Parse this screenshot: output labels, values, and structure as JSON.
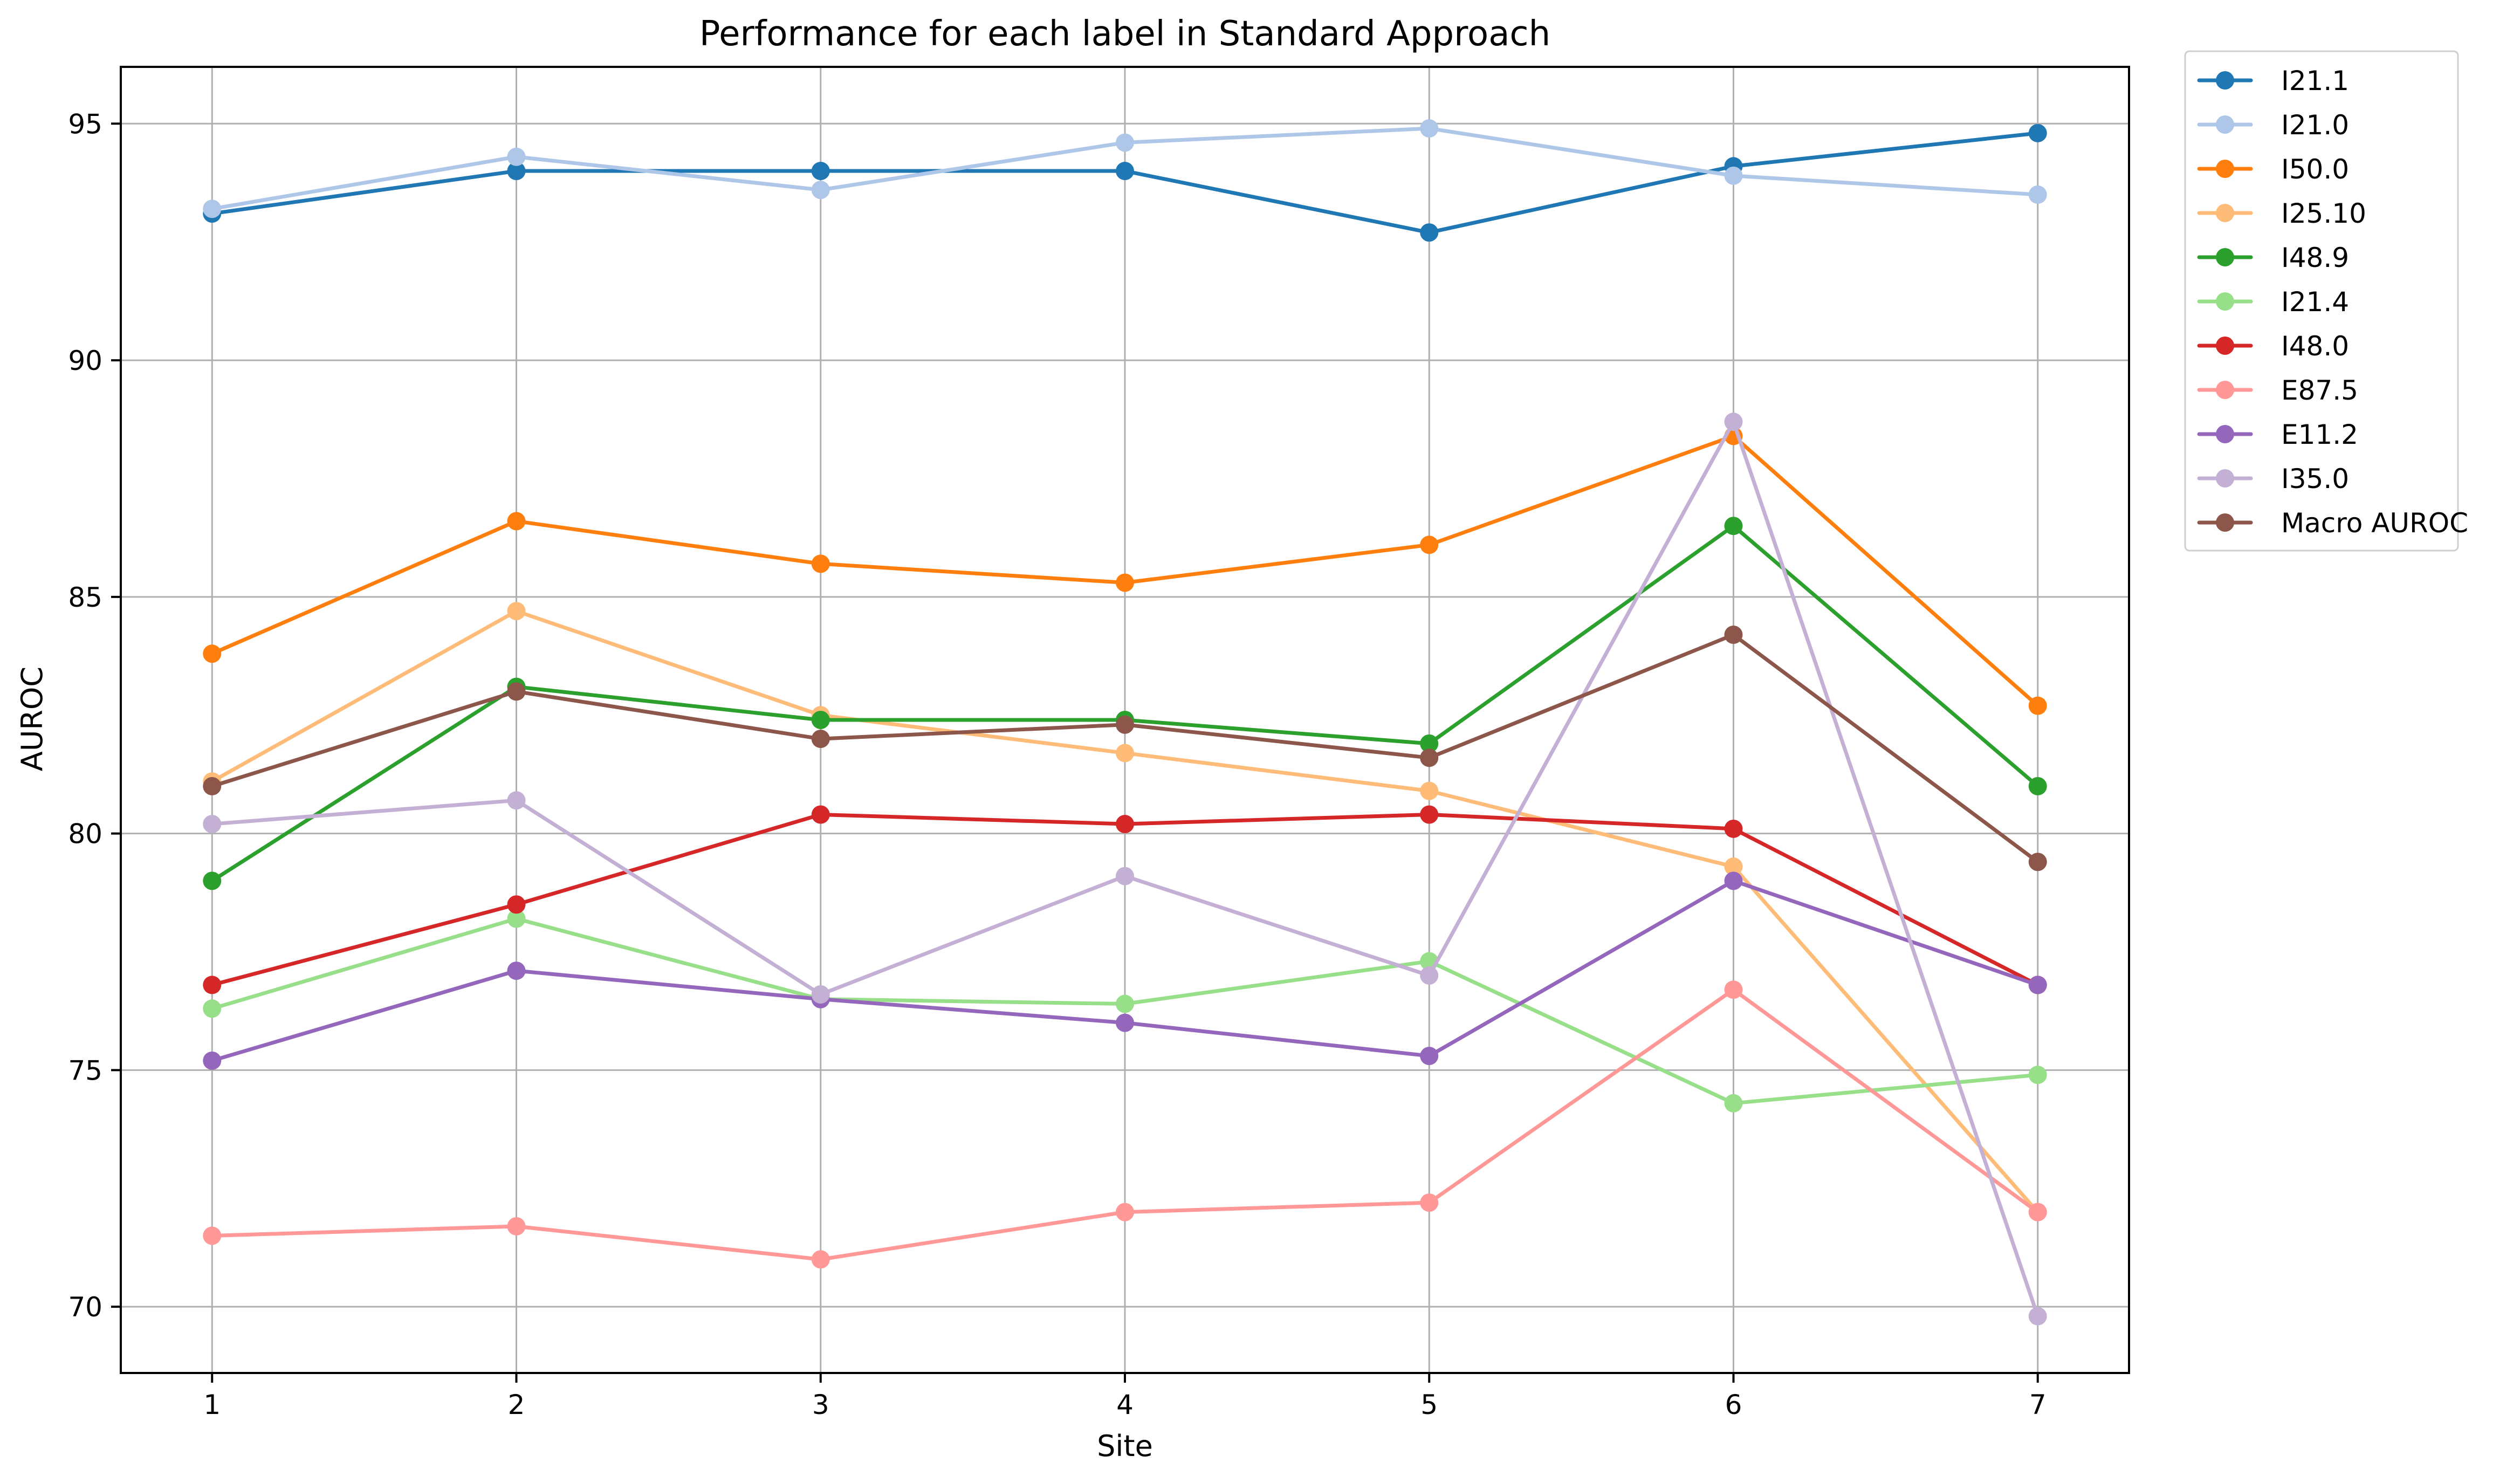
{
  "chart_data": {
    "type": "line",
    "title": "Performance for each label in Standard Approach",
    "xlabel": "Site",
    "ylabel": "AUROC",
    "x": [
      1,
      2,
      3,
      4,
      5,
      6,
      7
    ],
    "x_tick_labels": [
      "1",
      "2",
      "3",
      "4",
      "5",
      "6",
      "7"
    ],
    "y_ticks": [
      70,
      75,
      80,
      85,
      90,
      95
    ],
    "y_tick_labels": [
      "70",
      "75",
      "80",
      "85",
      "90",
      "95"
    ],
    "xlim": [
      0.7,
      7.3
    ],
    "ylim": [
      68.6,
      96.2
    ],
    "grid": true,
    "legend_position": "outside-right",
    "series": [
      {
        "name": "I21.1",
        "color": "#1f77b4",
        "values": [
          93.1,
          94.0,
          94.0,
          94.0,
          92.7,
          94.1,
          94.8
        ]
      },
      {
        "name": "I21.0",
        "color": "#aec7e8",
        "values": [
          93.2,
          94.3,
          93.6,
          94.6,
          94.9,
          93.9,
          93.5
        ]
      },
      {
        "name": "I50.0",
        "color": "#ff7f0e",
        "values": [
          83.8,
          86.6,
          85.7,
          85.3,
          86.1,
          88.4,
          82.7
        ]
      },
      {
        "name": "I25.10",
        "color": "#ffbb78",
        "values": [
          81.1,
          84.7,
          82.5,
          81.7,
          80.9,
          79.3,
          72.0
        ]
      },
      {
        "name": "I48.9",
        "color": "#2ca02c",
        "values": [
          79.0,
          83.1,
          82.4,
          82.4,
          81.9,
          86.5,
          81.0
        ]
      },
      {
        "name": "I21.4",
        "color": "#98df8a",
        "values": [
          76.3,
          78.2,
          76.5,
          76.4,
          77.3,
          74.3,
          74.9
        ]
      },
      {
        "name": "I48.0",
        "color": "#d62728",
        "values": [
          76.8,
          78.5,
          80.4,
          80.2,
          80.4,
          80.1,
          76.8
        ]
      },
      {
        "name": "E87.5",
        "color": "#ff9896",
        "values": [
          71.5,
          71.7,
          71.0,
          72.0,
          72.2,
          76.7,
          72.0
        ]
      },
      {
        "name": "E11.2",
        "color": "#9467bd",
        "values": [
          75.2,
          77.1,
          76.5,
          76.0,
          75.3,
          79.0,
          76.8
        ]
      },
      {
        "name": "I35.0",
        "color": "#c5b0d5",
        "values": [
          80.2,
          80.7,
          76.6,
          79.1,
          77.0,
          88.7,
          69.8
        ]
      },
      {
        "name": "Macro AUROC",
        "color": "#8c564b",
        "values": [
          81.0,
          83.0,
          82.0,
          82.3,
          81.6,
          84.2,
          79.4
        ]
      }
    ]
  }
}
